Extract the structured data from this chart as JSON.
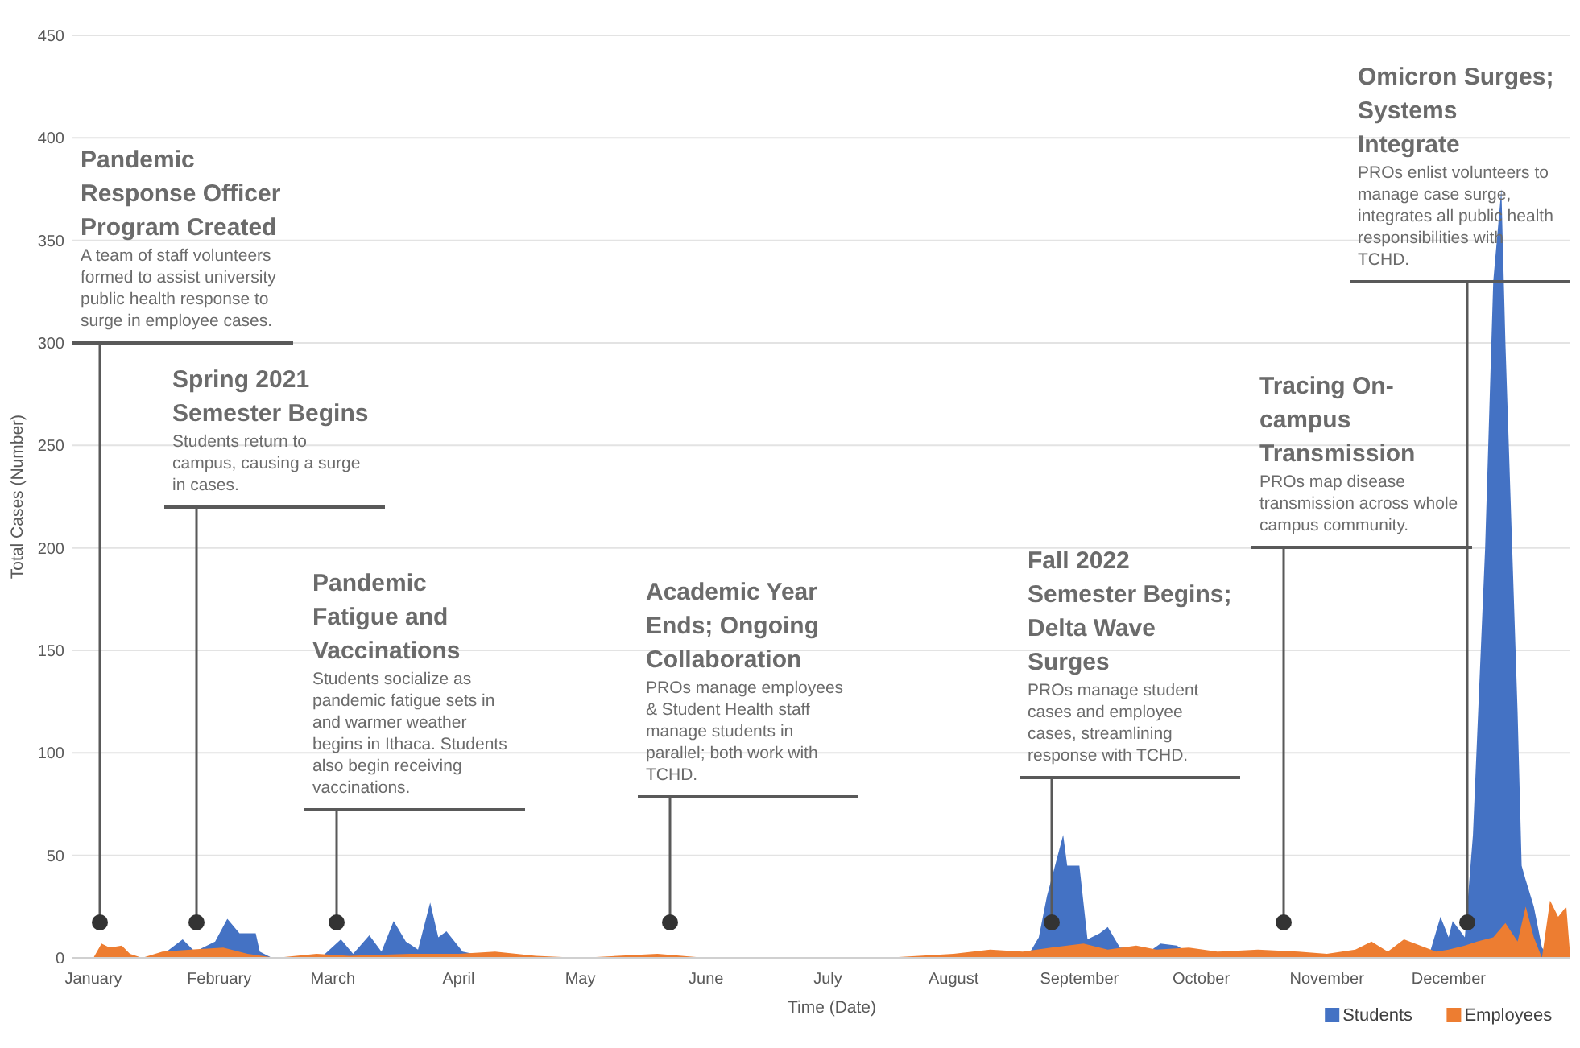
{
  "chart_data": {
    "type": "area",
    "xlabel": "Time (Date)",
    "ylabel": "Total Cases (Number)",
    "xlim": [
      "--01-01",
      "--12-31"
    ],
    "xticks": [
      {
        "value": "--01-01",
        "label": "January"
      },
      {
        "value": "--02-01",
        "label": "February"
      },
      {
        "value": "--03-01",
        "label": "March"
      },
      {
        "value": "--04-01",
        "label": "April"
      },
      {
        "value": "--05-01",
        "label": "May"
      },
      {
        "value": "--06-01",
        "label": "June"
      },
      {
        "value": "--07-01",
        "label": "July"
      },
      {
        "value": "--08-01",
        "label": "August"
      },
      {
        "value": "--09-01",
        "label": "September"
      },
      {
        "value": "--10-01",
        "label": "October"
      },
      {
        "value": "--11-01",
        "label": "November"
      },
      {
        "value": "--12-01",
        "label": "December"
      }
    ],
    "ylim": [
      0,
      450
    ],
    "yticks": [
      0,
      50,
      100,
      150,
      200,
      250,
      300,
      350,
      400,
      450
    ],
    "grid": "y",
    "legend": "bottom right",
    "series": [
      {
        "name": "Students",
        "color": "#4472c4",
        "x": [
          "--01-01",
          "--01-17",
          "--01-23",
          "--01-26",
          "--01-31",
          "--02-03",
          "--02-06",
          "--02-10",
          "--02-11",
          "--02-14",
          "--02-26",
          "--03-03",
          "--03-06",
          "--03-10",
          "--03-13",
          "--03-16",
          "--03-19",
          "--03-22",
          "--03-25",
          "--03-27",
          "--03-29",
          "--04-02",
          "--04-07",
          "--04-15",
          "--08-19",
          "--08-22",
          "--08-24",
          "--08-26",
          "--08-28",
          "--08-29",
          "--09-01",
          "--09-03",
          "--09-06",
          "--09-08",
          "--09-11",
          "--09-13",
          "--09-16",
          "--09-21",
          "--09-25",
          "--09-30",
          "--10-14",
          "--10-18",
          "--11-26",
          "--11-29",
          "--12-01",
          "--12-02",
          "--12-05",
          "--12-07",
          "--12-10",
          "--12-12",
          "--12-14",
          "--12-15",
          "--12-18",
          "--12-19",
          "--12-20",
          "--12-22",
          "--12-24",
          "--12-26",
          "--12-31"
        ],
        "values": [
          0,
          0,
          9,
          3,
          8,
          19,
          12,
          12,
          3,
          0,
          0,
          9,
          2,
          11,
          3,
          18,
          8,
          4,
          27,
          10,
          13,
          3,
          1,
          0,
          0,
          10,
          30,
          45,
          60,
          45,
          45,
          9,
          12,
          15,
          5,
          5,
          0,
          7,
          6,
          0,
          3,
          0,
          0,
          20,
          10,
          18,
          10,
          60,
          200,
          330,
          375,
          300,
          120,
          45,
          38,
          25,
          5,
          0,
          0
        ]
      },
      {
        "name": "Employees",
        "color": "#ed7d31",
        "x": [
          "--01-01",
          "--01-03",
          "--01-05",
          "--01-08",
          "--01-10",
          "--01-13",
          "--01-18",
          "--01-25",
          "--02-02",
          "--02-08",
          "--02-15",
          "--02-25",
          "--03-05",
          "--03-20",
          "--04-01",
          "--04-10",
          "--04-20",
          "--05-01",
          "--05-20",
          "--06-01",
          "--07-15",
          "--08-01",
          "--08-10",
          "--08-18",
          "--08-25",
          "--09-02",
          "--09-08",
          "--09-15",
          "--09-20",
          "--09-28",
          "--10-05",
          "--10-15",
          "--10-25",
          "--11-01",
          "--11-08",
          "--11-12",
          "--11-16",
          "--11-20",
          "--11-24",
          "--11-28",
          "--12-01",
          "--12-05",
          "--12-08",
          "--12-12",
          "--12-15",
          "--12-18",
          "--12-20",
          "--12-22",
          "--12-24",
          "--12-26",
          "--12-28",
          "--12-30",
          "--12-31"
        ],
        "values": [
          0,
          7,
          5,
          6,
          2,
          0,
          3,
          4,
          5,
          2,
          0,
          2,
          1,
          2,
          2,
          3,
          1,
          0,
          2,
          0,
          0,
          2,
          4,
          3,
          5,
          7,
          4,
          6,
          4,
          5,
          3,
          4,
          3,
          2,
          4,
          8,
          3,
          9,
          6,
          3,
          4,
          6,
          8,
          10,
          17,
          8,
          25,
          10,
          0,
          28,
          20,
          25,
          0
        ]
      }
    ],
    "annotations": [
      "Pandemic Response Officer Program Created",
      "A team of staff volunteers formed to assist university public health response to surge in employee cases.",
      "Spring 2021 Semester Begins",
      "Students return to campus, causing a surge in cases.",
      "Pandemic Fatigue and Vaccinations",
      "Students socialize as pandemic fatigue sets in and warmer weather begins in Ithaca. Students also begin receiving vaccinations.",
      "Academic Year Ends; Ongoing Collaboration",
      "PROs manage employees & Student Health staff manage students in parallel; both work with TCHD.",
      "Fall 2022 Semester Begins; Delta Wave Surges",
      "PROs manage student cases and employee cases, streamlining response with TCHD.",
      "Tracing On-campus Transmission",
      "PROs map disease transmission across whole campus community.",
      "Omicron Surges; Systems Integrate",
      "PROs enlist volunteers to manage case surge, integrates all public health responsibilities with TCHD."
    ]
  }
}
